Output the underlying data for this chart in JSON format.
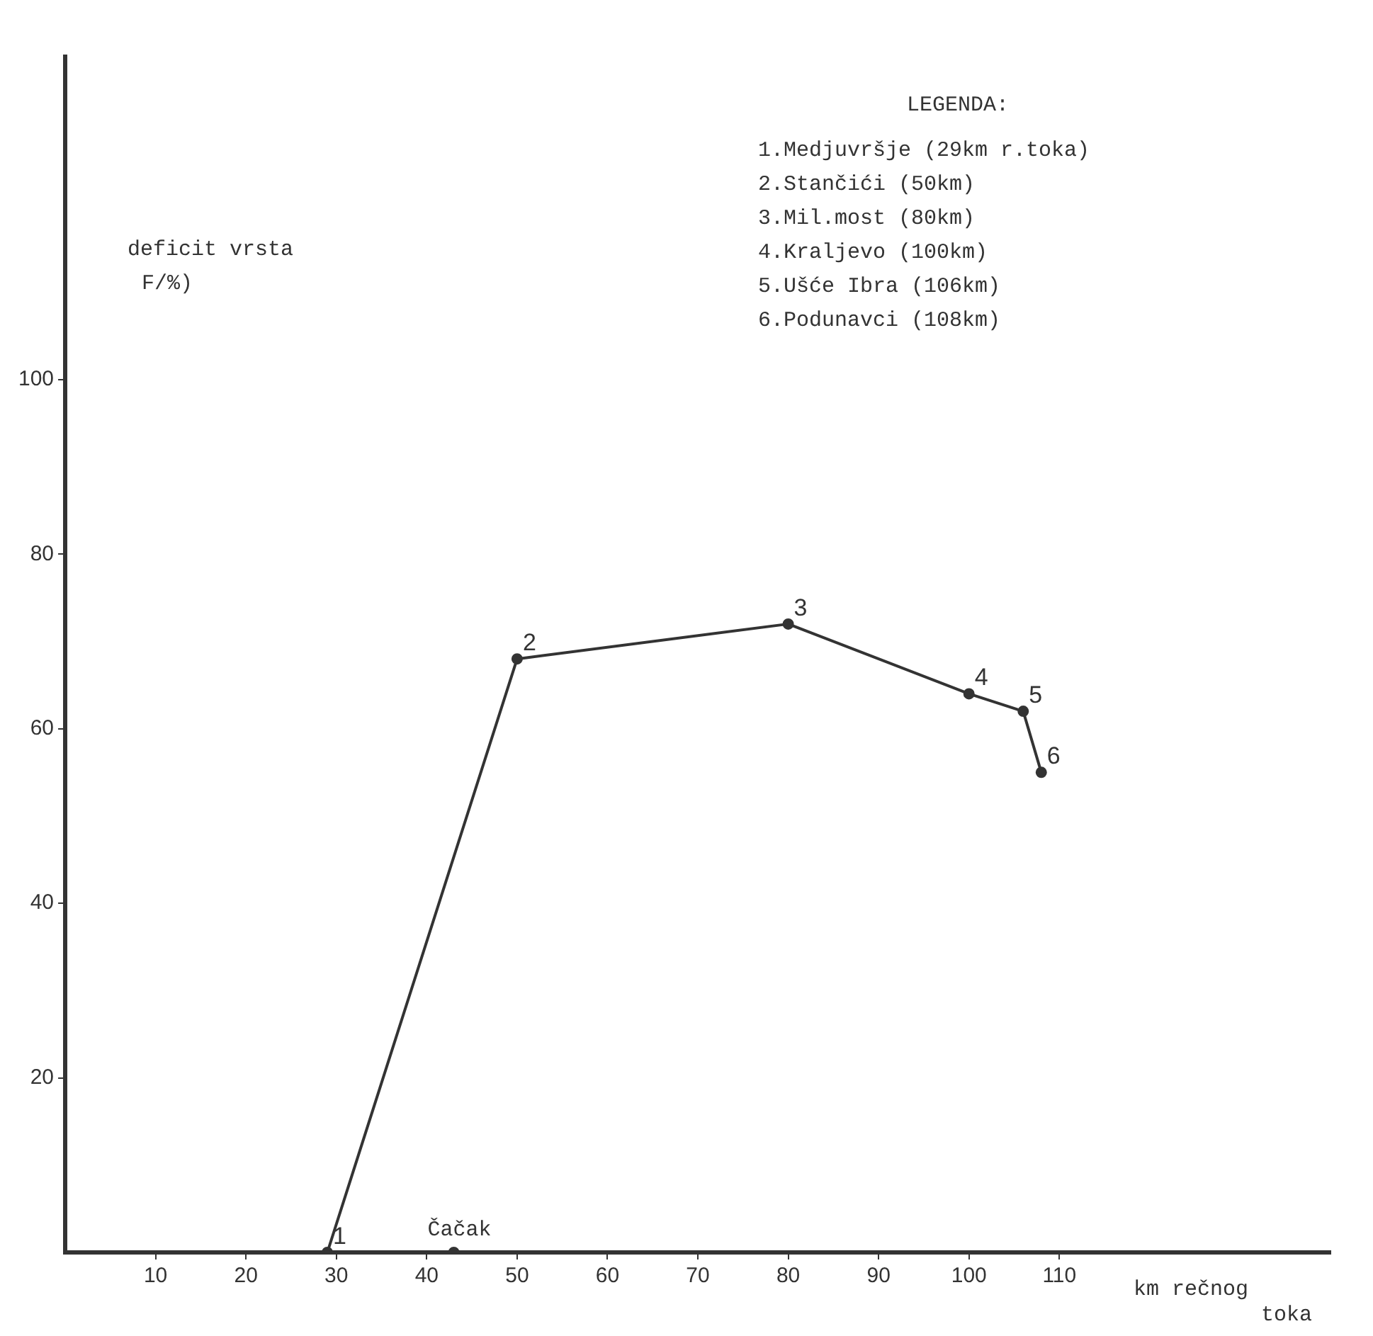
{
  "chart_data": {
    "type": "line",
    "ylabel": "deficit vrsta\nF/%)",
    "xlabel": "km rečnog toka",
    "x": [
      29,
      50,
      80,
      100,
      106,
      108
    ],
    "series": [
      {
        "color": "#333333",
        "values": [
          0,
          68,
          72,
          64,
          62,
          55
        ]
      },
      {
        "type": "scatter",
        "name": "Čačak",
        "color": "#333333",
        "x": [
          43
        ],
        "values": [
          0
        ]
      }
    ],
    "xlim": [
      0,
      140
    ],
    "xticks": [
      10,
      20,
      30,
      40,
      50,
      60,
      70,
      80,
      90,
      100,
      110
    ],
    "ylim": [
      0,
      137
    ],
    "yticks": [
      20,
      40,
      60,
      80,
      100
    ],
    "grid": false,
    "legend": false,
    "marker": "circle",
    "line_style": "solid",
    "annotations": [
      "LEGENDA:",
      "1.Medjuvršje (29km r.toka)",
      "2.Stančići (50km)",
      "3.Mil.most (80km)",
      "4.Kraljevo (100km)",
      "5.Ušće Ibra (106km)",
      "6.Podunavci (108km)",
      {
        "text": "1",
        "x": 29,
        "y": 0
      },
      {
        "text": "2",
        "x": 50,
        "y": 68
      },
      {
        "text": "3",
        "x": 80,
        "y": 72
      },
      {
        "text": "4",
        "x": 100,
        "y": 64
      },
      {
        "text": "5",
        "x": 106,
        "y": 62
      },
      {
        "text": "6",
        "x": 108,
        "y": 55
      }
    ]
  }
}
